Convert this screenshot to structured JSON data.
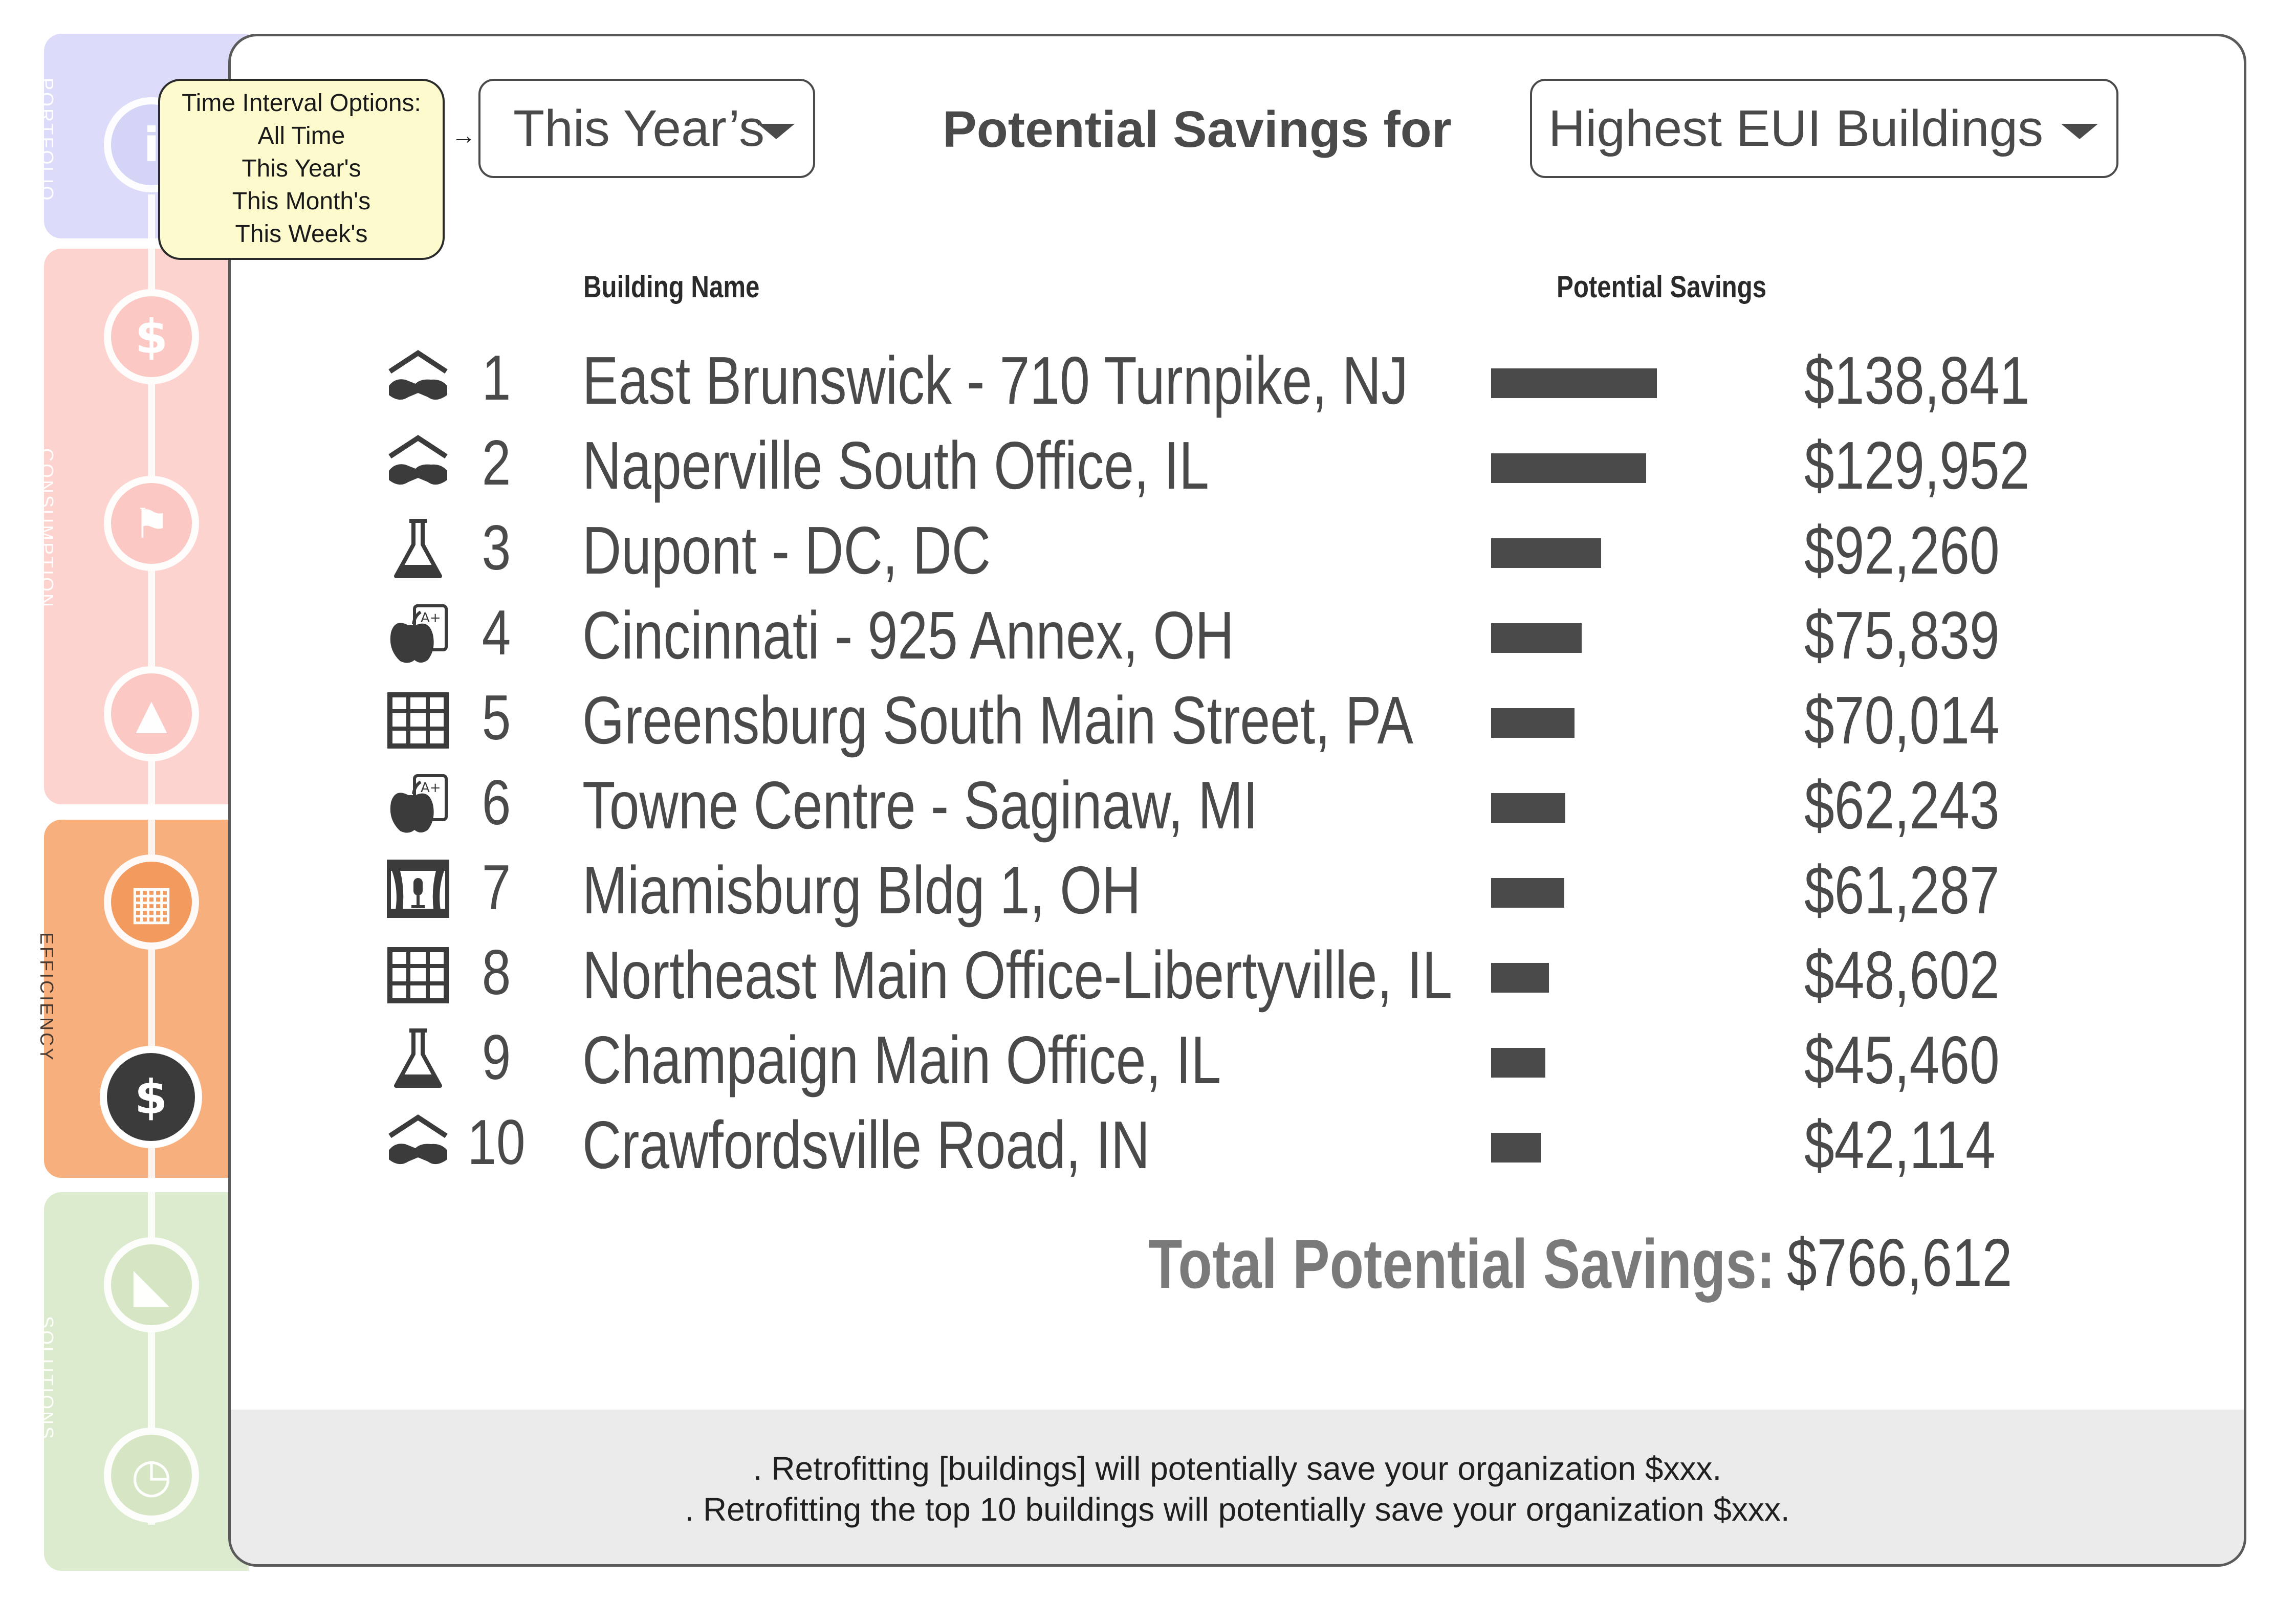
{
  "nav": {
    "sections": [
      {
        "label": "PORTFOLIO"
      },
      {
        "label": "CONSUMPTION"
      },
      {
        "label": "EFFICIENCY"
      },
      {
        "label": "SOLUTIONS"
      }
    ],
    "icons": [
      "info-icon",
      "dollar-icon",
      "faucet-fire-icon",
      "factory-icon",
      "building-icon",
      "piggy-bank-icon",
      "chart-icon",
      "clock-icon"
    ],
    "icon_glyphs": {
      "info": "i",
      "dollar": "$",
      "faucet": "⚑",
      "factory": "▲",
      "building": "▦",
      "piggy": "$",
      "chart": "◣",
      "clock": "◷"
    }
  },
  "tooltip": {
    "title": "Time Interval Options:",
    "options": [
      "All Time",
      "This Year's",
      "This Month's",
      "This Week's"
    ]
  },
  "header": {
    "time_dropdown": "This Year’s",
    "headline": "Potential Savings for",
    "set_dropdown": "Highest EUI Buildings"
  },
  "table": {
    "col_building": "Building Name",
    "col_savings": "Potential Savings",
    "rows": [
      {
        "rank": "1",
        "icon": "handshake-icon",
        "name": "East Brunswick - 710 Turnpike, NJ",
        "value": "$138,841",
        "amount": 138841
      },
      {
        "rank": "2",
        "icon": "handshake-icon",
        "name": "Naperville South Office, IL",
        "value": "$129,952",
        "amount": 129952
      },
      {
        "rank": "3",
        "icon": "flask-icon",
        "name": "Dupont - DC, DC",
        "value": "$92,260",
        "amount": 92260
      },
      {
        "rank": "4",
        "icon": "apple-grade-icon",
        "name": "Cincinnati - 925 Annex, OH",
        "value": "$75,839",
        "amount": 75839
      },
      {
        "rank": "5",
        "icon": "office-building-icon",
        "name": "Greensburg South Main Street, PA",
        "value": "$70,014",
        "amount": 70014
      },
      {
        "rank": "6",
        "icon": "apple-grade-icon",
        "name": "Towne Centre - Saginaw, MI",
        "value": "$62,243",
        "amount": 62243
      },
      {
        "rank": "7",
        "icon": "theater-stage-icon",
        "name": "Miamisburg Bldg 1, OH",
        "value": "$61,287",
        "amount": 61287
      },
      {
        "rank": "8",
        "icon": "office-building-icon",
        "name": "Northeast Main Office-Libertyville, IL",
        "value": "$48,602",
        "amount": 48602
      },
      {
        "rank": "9",
        "icon": "flask-icon",
        "name": "Champaign Main Office, IL",
        "value": "$45,460",
        "amount": 45460
      },
      {
        "rank": "10",
        "icon": "handshake-icon",
        "name": "Crawfordsville Road, IN",
        "value": "$42,114",
        "amount": 42114
      }
    ]
  },
  "total": {
    "label": "Total Potential Savings:",
    "value": "$766,612"
  },
  "footer": {
    "line1": ". Retrofitting [buildings] will potentially save your organization $xxx.",
    "line2": ". Retrofitting the top 10 buildings will potentially save your organization $xxx."
  },
  "colors": {
    "portfolio": "#dcdcfa",
    "consumption": "#fdd3d0",
    "efficiency": "#f7b07d",
    "solutions": "#dcebcd",
    "text": "#4a4a4a",
    "tooltip_bg": "#fdfbce"
  }
}
